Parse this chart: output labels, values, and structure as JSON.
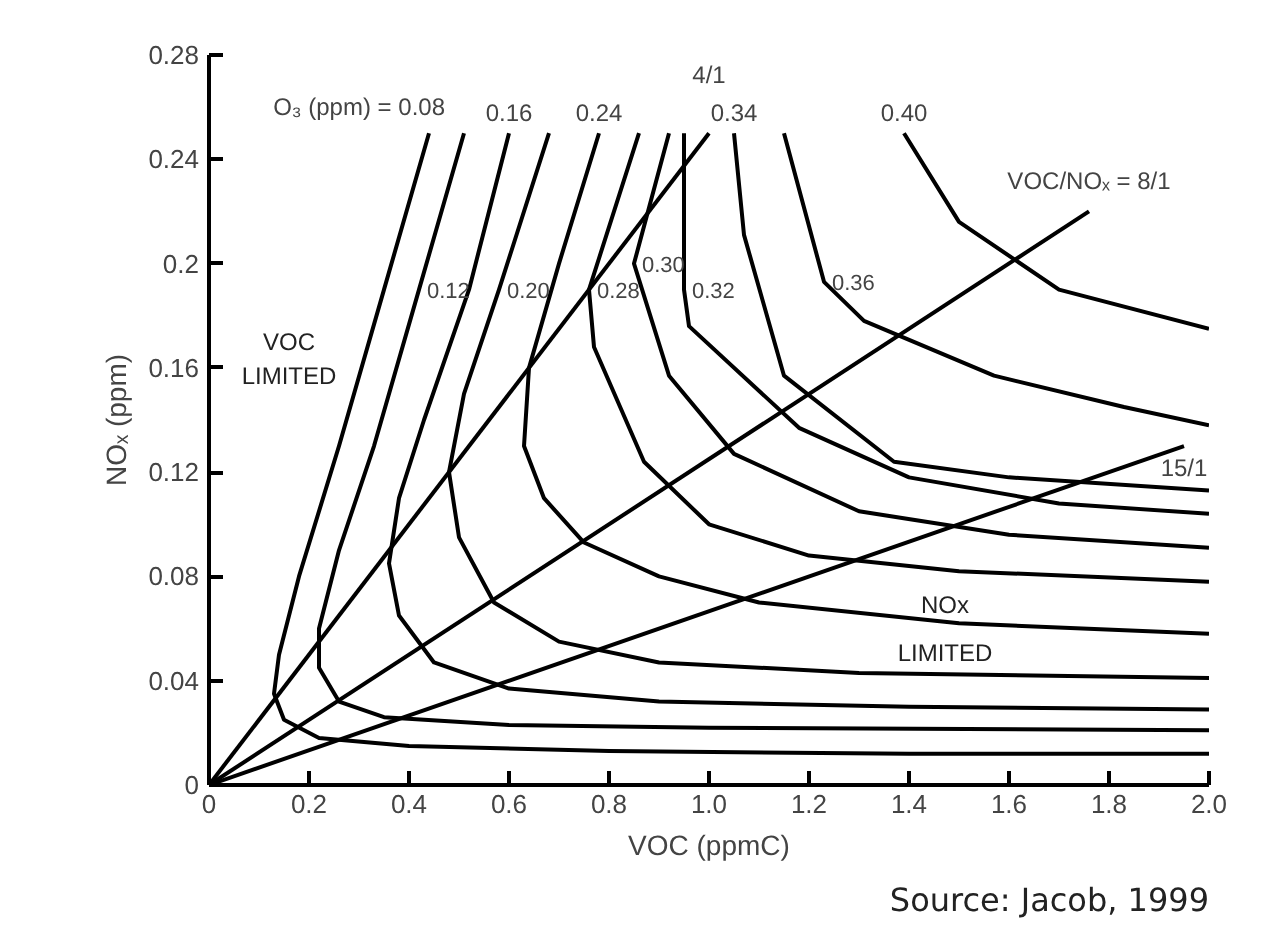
{
  "chart_data": {
    "type": "line",
    "xlabel": "VOC (ppmC)",
    "ylabel": "NOₓ (ppm)",
    "xlim": [
      0,
      2.0
    ],
    "ylim": [
      0,
      0.28
    ],
    "xticks": [
      0,
      0.2,
      0.4,
      0.6,
      0.8,
      {
        "value": 1,
        "label": "1.0"
      },
      1.2,
      1.4,
      1.6,
      1.8,
      {
        "value": 2,
        "label": "2.0"
      }
    ],
    "yticks": [
      0,
      0.04,
      0.08,
      0.12,
      0.16,
      0.2,
      0.24,
      0.28
    ],
    "grid": false,
    "marker": "none",
    "line_style": "solid",
    "series": [
      {
        "color": "#000000",
        "x": [
          0.44,
          0.35,
          0.26,
          0.18,
          0.14,
          0.13,
          0.15,
          0.22,
          0.4,
          0.8,
          1.4,
          2.0
        ],
        "values": [
          0.25,
          0.19,
          0.13,
          0.08,
          0.05,
          0.035,
          0.025,
          0.018,
          0.015,
          0.013,
          0.012,
          0.012
        ]
      },
      {
        "color": "#000000",
        "x": [
          0.51,
          0.42,
          0.33,
          0.26,
          0.22,
          0.22,
          0.26,
          0.35,
          0.6,
          1.0,
          2.0
        ],
        "values": [
          0.25,
          0.19,
          0.13,
          0.09,
          0.06,
          0.045,
          0.032,
          0.026,
          0.023,
          0.022,
          0.021
        ]
      },
      {
        "color": "#000000",
        "x": [
          0.6,
          0.52,
          0.43,
          0.38,
          0.36,
          0.38,
          0.45,
          0.6,
          0.9,
          1.4,
          2.0
        ],
        "values": [
          0.25,
          0.19,
          0.14,
          0.11,
          0.085,
          0.065,
          0.047,
          0.037,
          0.032,
          0.03,
          0.029
        ]
      },
      {
        "color": "#000000",
        "x": [
          0.68,
          0.58,
          0.51,
          0.48,
          0.5,
          0.57,
          0.7,
          0.9,
          1.3,
          2.0
        ],
        "values": [
          0.25,
          0.19,
          0.15,
          0.12,
          0.095,
          0.07,
          0.055,
          0.047,
          0.043,
          0.041
        ]
      },
      {
        "color": "#000000",
        "x": [
          0.78,
          0.7,
          0.64,
          0.63,
          0.67,
          0.75,
          0.9,
          1.1,
          1.5,
          2.0
        ],
        "values": [
          0.25,
          0.2,
          0.16,
          0.13,
          0.11,
          0.093,
          0.08,
          0.07,
          0.062,
          0.058
        ]
      },
      {
        "color": "#000000",
        "x": [
          0.86,
          0.76,
          0.77,
          0.87,
          1.0,
          1.2,
          1.5,
          2.0
        ],
        "values": [
          0.25,
          0.19,
          0.168,
          0.124,
          0.1,
          0.088,
          0.082,
          0.078
        ]
      },
      {
        "color": "#000000",
        "x": [
          0.92,
          0.85,
          0.92,
          1.05,
          1.3,
          1.6,
          2.0
        ],
        "values": [
          0.25,
          0.2,
          0.157,
          0.127,
          0.105,
          0.096,
          0.091
        ]
      },
      {
        "color": "#000000",
        "x": [
          0.95,
          0.95,
          0.96,
          1.18,
          1.4,
          1.7,
          2.0
        ],
        "values": [
          0.25,
          0.19,
          0.176,
          0.137,
          0.118,
          0.108,
          0.104
        ]
      },
      {
        "color": "#000000",
        "x": [
          1.05,
          1.07,
          1.15,
          1.37,
          1.6,
          2.0
        ],
        "values": [
          0.25,
          0.211,
          0.157,
          0.124,
          0.118,
          0.113
        ]
      },
      {
        "color": "#000000",
        "x": [
          1.15,
          1.23,
          1.31,
          1.57,
          1.83,
          2.0
        ],
        "values": [
          0.25,
          0.193,
          0.178,
          0.157,
          0.145,
          0.138
        ]
      },
      {
        "color": "#000000",
        "x": [
          1.39,
          1.5,
          1.7,
          2.0
        ],
        "values": [
          0.25,
          0.216,
          0.19,
          0.175
        ]
      },
      {
        "color": "#000000",
        "x": [
          0,
          1.0
        ],
        "values": [
          0,
          0.25
        ]
      },
      {
        "color": "#000000",
        "x": [
          0,
          1.76
        ],
        "values": [
          0,
          0.22
        ]
      },
      {
        "color": "#000000",
        "x": [
          0,
          1.95
        ],
        "values": [
          0,
          0.13
        ]
      }
    ],
    "annotations": [
      {
        "text": "O₃ (ppm) = 0.08",
        "x": 0.44,
        "y": 0.25
      },
      {
        "text": "0.12",
        "x": 0.42,
        "y": 0.19
      },
      {
        "text": "0.16",
        "x": 0.6,
        "y": 0.25
      },
      {
        "text": "0.20",
        "x": 0.58,
        "y": 0.19
      },
      {
        "text": "0.24",
        "x": 0.78,
        "y": 0.25
      },
      {
        "text": "0.28",
        "x": 0.76,
        "y": 0.19
      },
      {
        "text": "0.30",
        "x": 0.85,
        "y": 0.2
      },
      {
        "text": "0.32",
        "x": 0.95,
        "y": 0.19
      },
      {
        "text": "0.34",
        "x": 1.05,
        "y": 0.25
      },
      {
        "text": "0.36",
        "x": 1.23,
        "y": 0.193
      },
      {
        "text": "0.40",
        "x": 1.39,
        "y": 0.25
      },
      {
        "text": "4/1",
        "x": 1.0,
        "y": 0.25
      },
      {
        "text": "VOC/NOₓ = 8/1",
        "x": 1.76,
        "y": 0.22
      },
      {
        "text": "15/1",
        "x": 1.95,
        "y": 0.13
      },
      "VOC\nLIMITED",
      "NOx\nLIMITED",
      "Source: Jacob, 1999"
    ]
  }
}
